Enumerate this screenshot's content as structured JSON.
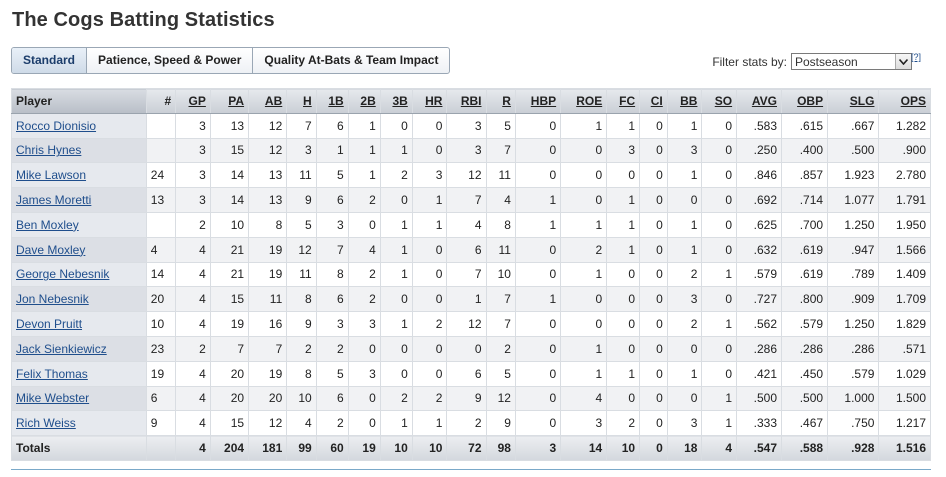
{
  "page": {
    "title": "The Cogs Batting Statistics"
  },
  "tabs": [
    {
      "label": "Standard",
      "active": true
    },
    {
      "label": "Patience, Speed & Power",
      "active": false
    },
    {
      "label": "Quality At-Bats & Team Impact",
      "active": false
    }
  ],
  "filter": {
    "label": "Filter stats by:",
    "selected": "Postseason",
    "help": "[?]"
  },
  "table": {
    "columns": [
      "Player",
      "#",
      "GP",
      "PA",
      "AB",
      "H",
      "1B",
      "2B",
      "3B",
      "HR",
      "RBI",
      "R",
      "HBP",
      "ROE",
      "FC",
      "CI",
      "BB",
      "SO",
      "AVG",
      "OBP",
      "SLG",
      "OPS"
    ],
    "rows": [
      [
        "Rocco Dionisio",
        "",
        "3",
        "13",
        "12",
        "7",
        "6",
        "1",
        "0",
        "0",
        "3",
        "5",
        "0",
        "1",
        "1",
        "0",
        "1",
        "0",
        ".583",
        ".615",
        ".667",
        "1.282"
      ],
      [
        "Chris Hynes",
        "",
        "3",
        "15",
        "12",
        "3",
        "1",
        "1",
        "1",
        "0",
        "3",
        "7",
        "0",
        "0",
        "3",
        "0",
        "3",
        "0",
        ".250",
        ".400",
        ".500",
        ".900"
      ],
      [
        "Mike Lawson",
        "24",
        "3",
        "14",
        "13",
        "11",
        "5",
        "1",
        "2",
        "3",
        "12",
        "11",
        "0",
        "0",
        "0",
        "0",
        "1",
        "0",
        ".846",
        ".857",
        "1.923",
        "2.780"
      ],
      [
        "James Moretti",
        "13",
        "3",
        "14",
        "13",
        "9",
        "6",
        "2",
        "0",
        "1",
        "7",
        "4",
        "1",
        "0",
        "1",
        "0",
        "0",
        "0",
        ".692",
        ".714",
        "1.077",
        "1.791"
      ],
      [
        "Ben Moxley",
        "",
        "2",
        "10",
        "8",
        "5",
        "3",
        "0",
        "1",
        "1",
        "4",
        "8",
        "1",
        "1",
        "1",
        "0",
        "1",
        "0",
        ".625",
        ".700",
        "1.250",
        "1.950"
      ],
      [
        "Dave Moxley",
        "4",
        "4",
        "21",
        "19",
        "12",
        "7",
        "4",
        "1",
        "0",
        "6",
        "11",
        "0",
        "2",
        "1",
        "0",
        "1",
        "0",
        ".632",
        ".619",
        ".947",
        "1.566"
      ],
      [
        "George Nebesnik",
        "14",
        "4",
        "21",
        "19",
        "11",
        "8",
        "2",
        "1",
        "0",
        "7",
        "10",
        "0",
        "1",
        "0",
        "0",
        "2",
        "1",
        ".579",
        ".619",
        ".789",
        "1.409"
      ],
      [
        "Jon Nebesnik",
        "20",
        "4",
        "15",
        "11",
        "8",
        "6",
        "2",
        "0",
        "0",
        "1",
        "7",
        "1",
        "0",
        "0",
        "0",
        "3",
        "0",
        ".727",
        ".800",
        ".909",
        "1.709"
      ],
      [
        "Devon Pruitt",
        "10",
        "4",
        "19",
        "16",
        "9",
        "3",
        "3",
        "1",
        "2",
        "12",
        "7",
        "0",
        "0",
        "0",
        "0",
        "2",
        "1",
        ".562",
        ".579",
        "1.250",
        "1.829"
      ],
      [
        "Jack Sienkiewicz",
        "23",
        "2",
        "7",
        "7",
        "2",
        "2",
        "0",
        "0",
        "0",
        "0",
        "2",
        "0",
        "1",
        "0",
        "0",
        "0",
        "0",
        ".286",
        ".286",
        ".286",
        ".571"
      ],
      [
        "Felix Thomas",
        "19",
        "4",
        "20",
        "19",
        "8",
        "5",
        "3",
        "0",
        "0",
        "6",
        "5",
        "0",
        "1",
        "1",
        "0",
        "1",
        "0",
        ".421",
        ".450",
        ".579",
        "1.029"
      ],
      [
        "Mike Webster",
        "6",
        "4",
        "20",
        "20",
        "10",
        "6",
        "0",
        "2",
        "2",
        "9",
        "12",
        "0",
        "4",
        "0",
        "0",
        "0",
        "1",
        ".500",
        ".500",
        "1.000",
        "1.500"
      ],
      [
        "Rich Weiss",
        "9",
        "4",
        "15",
        "12",
        "4",
        "2",
        "0",
        "1",
        "1",
        "2",
        "9",
        "0",
        "3",
        "2",
        "0",
        "3",
        "1",
        ".333",
        ".467",
        ".750",
        "1.217"
      ]
    ],
    "totals": [
      "Totals",
      "",
      "4",
      "204",
      "181",
      "99",
      "60",
      "19",
      "10",
      "10",
      "72",
      "98",
      "3",
      "14",
      "10",
      "0",
      "18",
      "4",
      ".547",
      ".588",
      ".928",
      "1.516"
    ]
  }
}
